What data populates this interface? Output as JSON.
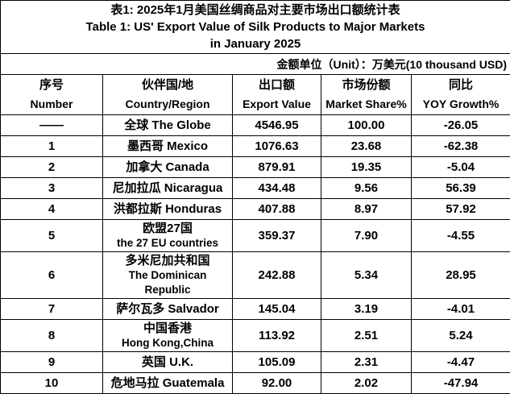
{
  "table": {
    "title_zh": "表1: 2025年1月美国丝绸商品对主要市场出口额统计表",
    "title_en_line1": "Table 1: US' Export Value of Silk Products to Major Markets",
    "title_en_line2": "in January 2025",
    "unit_note": "金额单位（Unit）：万美元(10 thousand USD)",
    "columns": [
      {
        "zh": "序号",
        "en": "Number"
      },
      {
        "zh": "伙伴国/地",
        "en": "Country/Region"
      },
      {
        "zh": "出口额",
        "en": "Export Value"
      },
      {
        "zh": "市场份额",
        "en": "Market Share%"
      },
      {
        "zh": "同比",
        "en": "YOY Growth%"
      }
    ],
    "rows": [
      {
        "number": "——",
        "country_line1": "全球 The Globe",
        "country_line2": "",
        "export_value": "4546.95",
        "market_share": "100.00",
        "yoy_growth": "-26.05"
      },
      {
        "number": "1",
        "country_line1": "墨西哥 Mexico",
        "country_line2": "",
        "export_value": "1076.63",
        "market_share": "23.68",
        "yoy_growth": "-62.38"
      },
      {
        "number": "2",
        "country_line1": "加拿大 Canada",
        "country_line2": "",
        "export_value": "879.91",
        "market_share": "19.35",
        "yoy_growth": "-5.04"
      },
      {
        "number": "3",
        "country_line1": "尼加拉瓜 Nicaragua",
        "country_line2": "",
        "export_value": "434.48",
        "market_share": "9.56",
        "yoy_growth": "56.39"
      },
      {
        "number": "4",
        "country_line1": "洪都拉斯 Honduras",
        "country_line2": "",
        "export_value": "407.88",
        "market_share": "8.97",
        "yoy_growth": "57.92"
      },
      {
        "number": "5",
        "country_line1": "欧盟27国",
        "country_line2": "the 27 EU countries",
        "export_value": "359.37",
        "market_share": "7.90",
        "yoy_growth": "-4.55"
      },
      {
        "number": "6",
        "country_line1": "多米尼加共和国",
        "country_line2": "The Dominican Republic",
        "export_value": "242.88",
        "market_share": "5.34",
        "yoy_growth": "28.95"
      },
      {
        "number": "7",
        "country_line1": "萨尔瓦多 Salvador",
        "country_line2": "",
        "export_value": "145.04",
        "market_share": "3.19",
        "yoy_growth": "-4.01"
      },
      {
        "number": "8",
        "country_line1": "中国香港",
        "country_line2": "Hong Kong,China",
        "export_value": "113.92",
        "market_share": "2.51",
        "yoy_growth": "5.24"
      },
      {
        "number": "9",
        "country_line1": "英国 U.K.",
        "country_line2": "",
        "export_value": "105.09",
        "market_share": "2.31",
        "yoy_growth": "-4.47"
      },
      {
        "number": "10",
        "country_line1": "危地马拉 Guatemala",
        "country_line2": "",
        "export_value": "92.00",
        "market_share": "2.02",
        "yoy_growth": "-47.94"
      }
    ]
  }
}
